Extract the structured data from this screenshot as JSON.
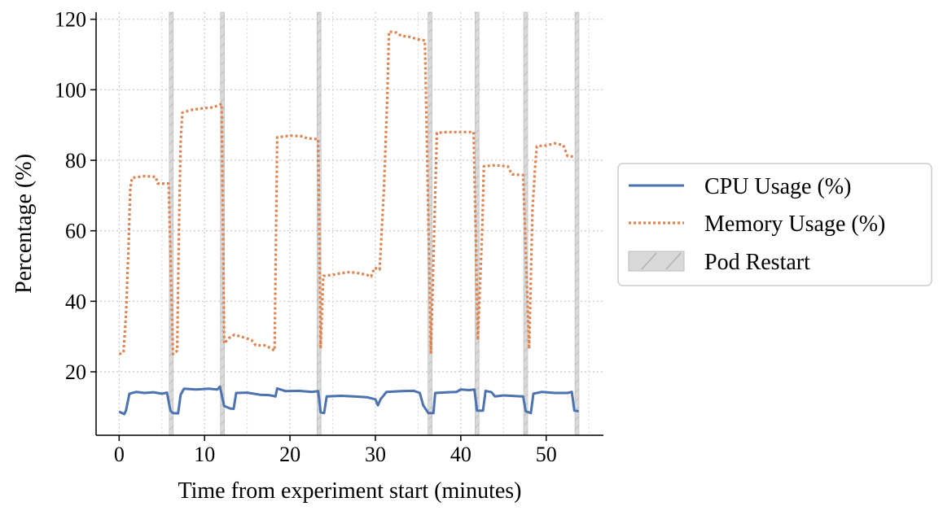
{
  "chart_data": {
    "type": "line",
    "xlabel": "Time from experiment start (minutes)",
    "ylabel": "Percentage (%)",
    "xlim": [
      -2.7,
      56.7
    ],
    "ylim": [
      2,
      122
    ],
    "xticks": [
      0,
      10,
      20,
      30,
      40,
      50
    ],
    "yticks": [
      20,
      40,
      60,
      80,
      100,
      120
    ],
    "grid": true,
    "legend_position": "right",
    "series": [
      {
        "name": "CPU Usage (%)",
        "style": "solid",
        "color": "#4c72b0",
        "points": [
          [
            0,
            8.7
          ],
          [
            0.6,
            8
          ],
          [
            0.8,
            9
          ],
          [
            1.2,
            13.8
          ],
          [
            2.0,
            14.3
          ],
          [
            3.0,
            14.0
          ],
          [
            4.0,
            14.2
          ],
          [
            5.0,
            13.8
          ],
          [
            5.6,
            14.1
          ],
          [
            6.0,
            9
          ],
          [
            6.3,
            8.3
          ],
          [
            6.9,
            8.2
          ],
          [
            7.2,
            13.5
          ],
          [
            7.6,
            15.2
          ],
          [
            9.0,
            15.0
          ],
          [
            10.5,
            15.2
          ],
          [
            11.5,
            15.0
          ],
          [
            11.8,
            15.8
          ],
          [
            12.0,
            13.5
          ],
          [
            12.3,
            10.3
          ],
          [
            13.0,
            9.6
          ],
          [
            13.4,
            9.5
          ],
          [
            13.7,
            14.0
          ],
          [
            15.0,
            14.1
          ],
          [
            16.5,
            13.5
          ],
          [
            17.5,
            13.4
          ],
          [
            18.0,
            13.2
          ],
          [
            18.3,
            13.0
          ],
          [
            18.5,
            15.3
          ],
          [
            19.5,
            14.5
          ],
          [
            21.0,
            14.6
          ],
          [
            22.5,
            14.3
          ],
          [
            23.3,
            14.5
          ],
          [
            23.6,
            8.5
          ],
          [
            24.0,
            8.3
          ],
          [
            24.3,
            13.0
          ],
          [
            26.0,
            13.2
          ],
          [
            27.5,
            13.0
          ],
          [
            29.0,
            12.8
          ],
          [
            30.0,
            12.2
          ],
          [
            30.3,
            10.5
          ],
          [
            30.6,
            12.2
          ],
          [
            31.3,
            14.3
          ],
          [
            33.0,
            14.5
          ],
          [
            34.5,
            14.6
          ],
          [
            35.2,
            14.0
          ],
          [
            35.6,
            10.5
          ],
          [
            36.2,
            8.3
          ],
          [
            36.8,
            8.3
          ],
          [
            37.0,
            14.0
          ],
          [
            38.5,
            14.2
          ],
          [
            39.5,
            14.3
          ],
          [
            40.0,
            15.0
          ],
          [
            41.0,
            14.8
          ],
          [
            41.6,
            15.0
          ],
          [
            41.9,
            9.0
          ],
          [
            42.6,
            9.0
          ],
          [
            42.9,
            14.6
          ],
          [
            43.6,
            14.2
          ],
          [
            44.0,
            13.0
          ],
          [
            45.0,
            13.3
          ],
          [
            46.5,
            13.1
          ],
          [
            47.3,
            13.0
          ],
          [
            47.6,
            8.8
          ],
          [
            48.2,
            8.3
          ],
          [
            48.5,
            13.8
          ],
          [
            49.5,
            14.3
          ],
          [
            51.0,
            14.0
          ],
          [
            52.5,
            14.0
          ],
          [
            53.0,
            14.3
          ],
          [
            53.3,
            9.0
          ],
          [
            53.8,
            8.8
          ]
        ]
      },
      {
        "name": "Memory Usage (%)",
        "style": "dotted",
        "color": "#dd8452",
        "points": [
          [
            0,
            25
          ],
          [
            0.5,
            25.5
          ],
          [
            0.8,
            36
          ],
          [
            1.1,
            56
          ],
          [
            1.3,
            72
          ],
          [
            1.5,
            75
          ],
          [
            2.0,
            75.2
          ],
          [
            3.0,
            75.5
          ],
          [
            4.3,
            75.3
          ],
          [
            4.5,
            73.4
          ],
          [
            5.8,
            73.4
          ],
          [
            6.3,
            25
          ],
          [
            6.8,
            26
          ],
          [
            7.0,
            60
          ],
          [
            7.2,
            85
          ],
          [
            7.4,
            93.5
          ],
          [
            8.5,
            94.3
          ],
          [
            10.0,
            94.8
          ],
          [
            11.0,
            95.0
          ],
          [
            12.0,
            96.0
          ],
          [
            12.3,
            28
          ],
          [
            12.8,
            29.5
          ],
          [
            13.5,
            30.5
          ],
          [
            14.5,
            29.8
          ],
          [
            15.5,
            29.0
          ],
          [
            16.0,
            27.5
          ],
          [
            17.0,
            27.5
          ],
          [
            17.5,
            27.0
          ],
          [
            18.2,
            26.0
          ],
          [
            18.5,
            86.5
          ],
          [
            20.0,
            87.0
          ],
          [
            21.5,
            86.8
          ],
          [
            22.0,
            86.2
          ],
          [
            23.3,
            86.0
          ],
          [
            23.6,
            27
          ],
          [
            23.9,
            47.2
          ],
          [
            25.0,
            47.5
          ],
          [
            26.0,
            48.0
          ],
          [
            27.0,
            48.3
          ],
          [
            28.0,
            48.0
          ],
          [
            29.0,
            47.5
          ],
          [
            29.5,
            47.0
          ],
          [
            29.9,
            49.5
          ],
          [
            30.5,
            49.0
          ],
          [
            31.0,
            72
          ],
          [
            31.4,
            98
          ],
          [
            31.6,
            116.5
          ],
          [
            32.5,
            116.2
          ],
          [
            33.0,
            115.3
          ],
          [
            34.0,
            115.0
          ],
          [
            35.0,
            114.3
          ],
          [
            35.8,
            114.0
          ],
          [
            36.5,
            25.5
          ],
          [
            37.0,
            70
          ],
          [
            37.2,
            87.8
          ],
          [
            38.5,
            88.0
          ],
          [
            40.0,
            88.0
          ],
          [
            41.5,
            88.0
          ],
          [
            42.0,
            29
          ],
          [
            42.5,
            60
          ],
          [
            42.7,
            78.3
          ],
          [
            44.0,
            78.6
          ],
          [
            45.5,
            78.3
          ],
          [
            46.0,
            76.0
          ],
          [
            47.3,
            75.8
          ],
          [
            48.0,
            26.5
          ],
          [
            48.4,
            66
          ],
          [
            48.7,
            78
          ],
          [
            48.9,
            84.0
          ],
          [
            50.0,
            84.2
          ],
          [
            51.0,
            84.8
          ],
          [
            52.0,
            84.3
          ],
          [
            52.5,
            81.2
          ],
          [
            53.3,
            81.0
          ]
        ]
      }
    ],
    "restarts": {
      "label": "Pod Restart",
      "color": "#d9d9d9",
      "times": [
        6.1,
        12.1,
        23.4,
        36.4,
        41.9,
        47.6,
        53.6
      ]
    },
    "legend": [
      {
        "label": "CPU Usage (%)",
        "kind": "line-solid",
        "color": "#4c72b0"
      },
      {
        "label": "Memory Usage (%)",
        "kind": "line-dotted",
        "color": "#dd8452"
      },
      {
        "label": "Pod Restart",
        "kind": "hatched-patch",
        "color": "#d9d9d9"
      }
    ]
  }
}
